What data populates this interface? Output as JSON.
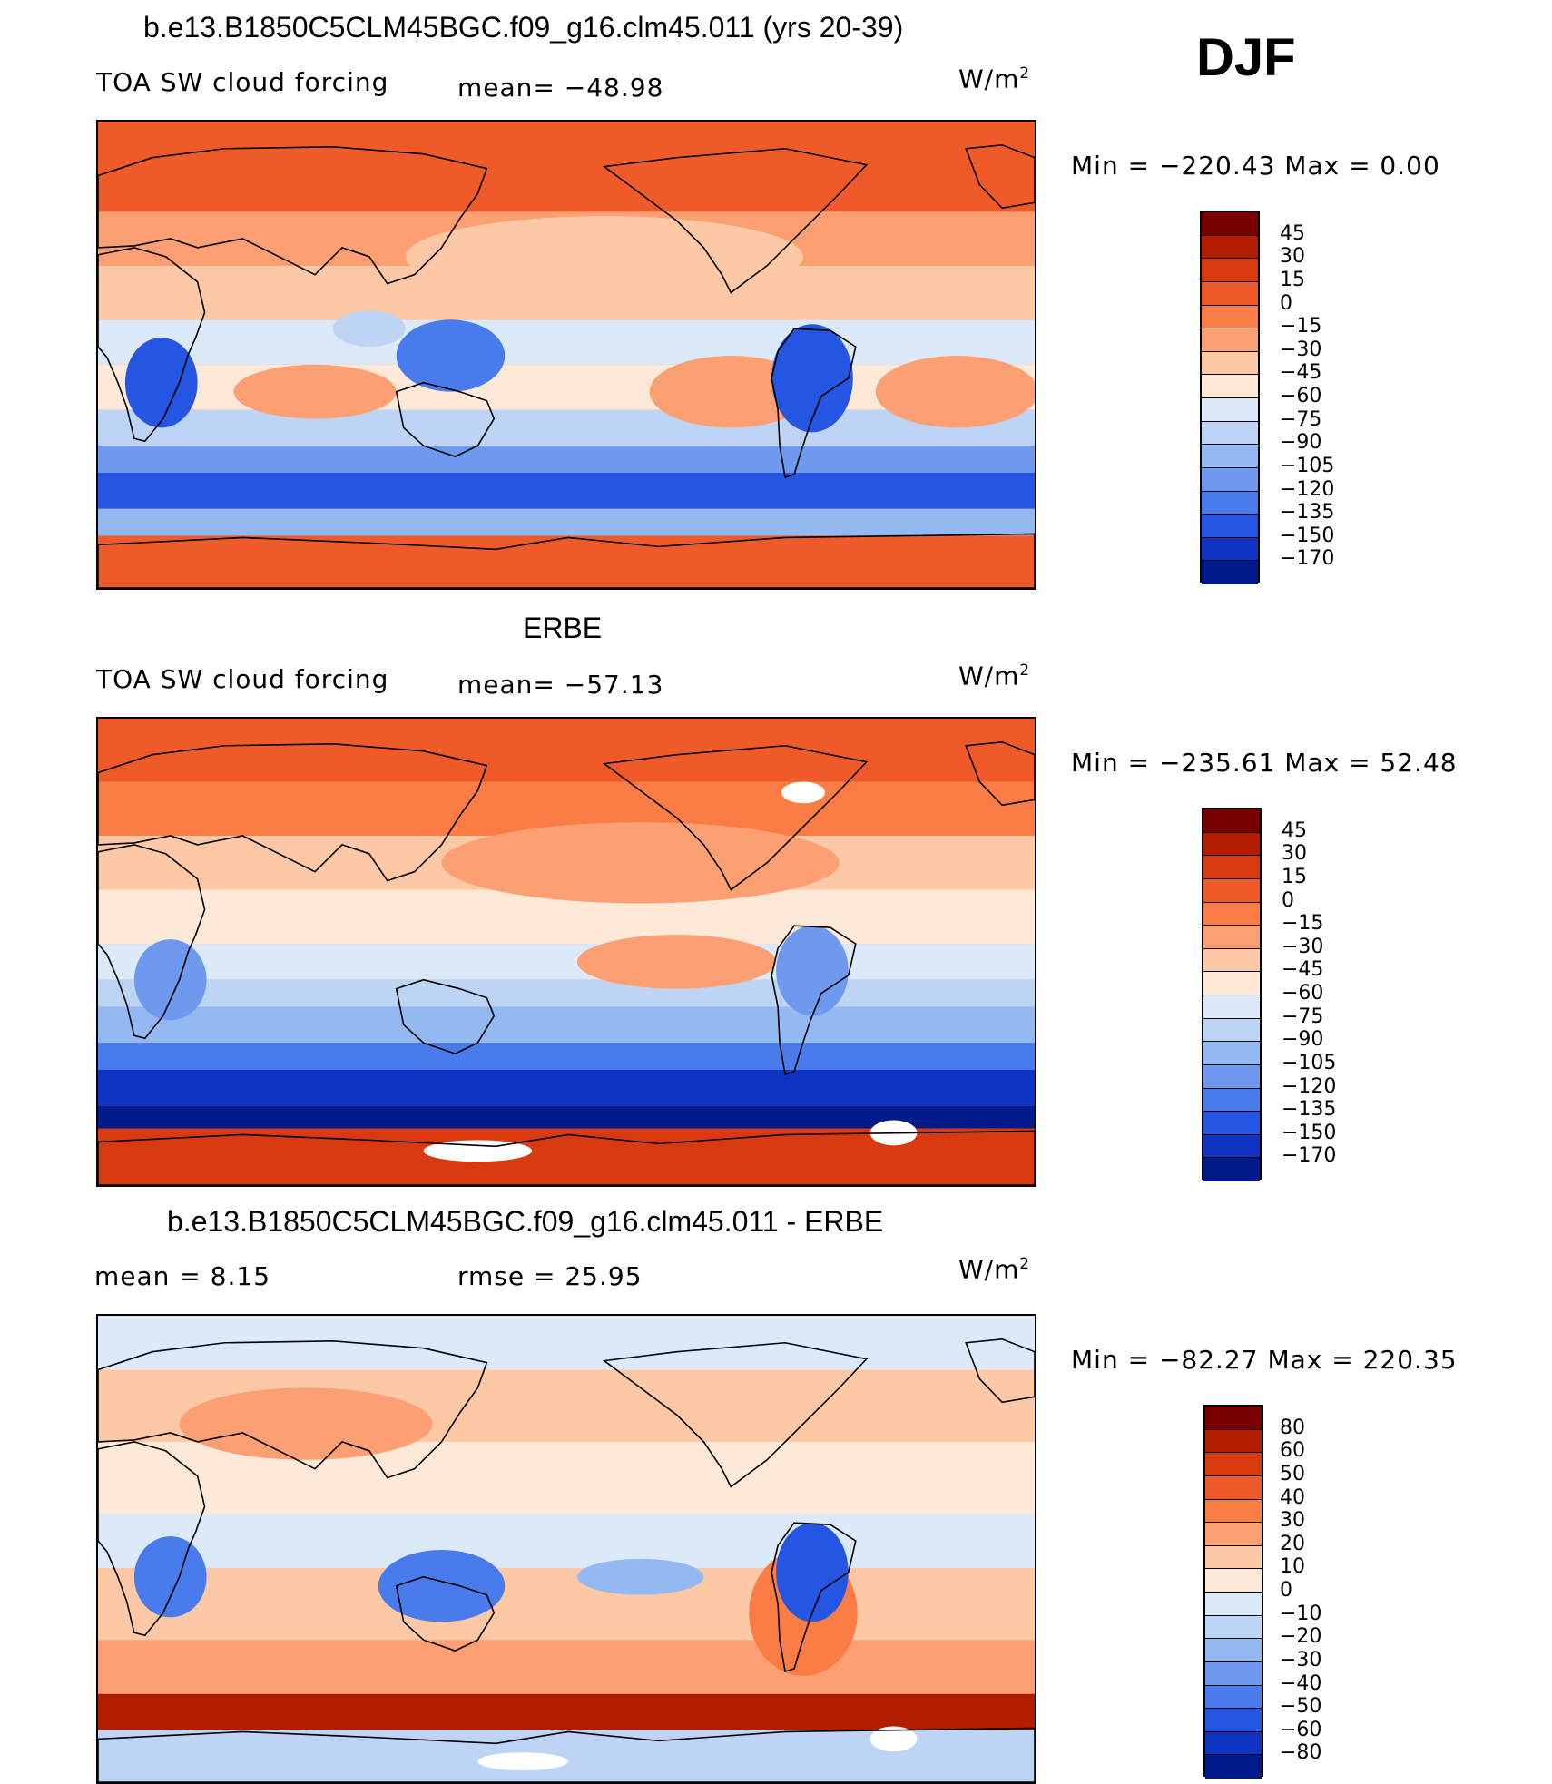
{
  "header": {
    "case_title": "b.e13.B1850C5CLM45BGC.f09_g16.clm45.011 (yrs 20-39)",
    "season": "DJF"
  },
  "panels": [
    {
      "id": "model",
      "variable": "TOA SW cloud forcing",
      "stat_text": "mean=  −48.98",
      "units": "W/m",
      "units_exp": "2",
      "minmax": "Min  =  −220.43  Max  =     0.00",
      "colorbar": {
        "labels": [
          "45",
          "30",
          "15",
          "0",
          "−15",
          "−30",
          "−45",
          "−60",
          "−75",
          "−90",
          "−105",
          "−120",
          "−135",
          "−150",
          "−170"
        ],
        "colors": [
          "#7a0000",
          "#b21d00",
          "#d83a10",
          "#f05a28",
          "#fb7d45",
          "#fc9f72",
          "#fdc8a6",
          "#fee8d7",
          "#dce9f8",
          "#bdd4f5",
          "#94b8f2",
          "#6e99ef",
          "#4a7bec",
          "#2456e3",
          "#0f33c4",
          "#001a8a"
        ]
      },
      "chart_data": {
        "type": "filled-contour-map",
        "projection": "cylindrical-equidistant, centered on 180",
        "variable": "TOA SW cloud forcing",
        "units": "W/m2",
        "mean": -48.98,
        "min": -220.43,
        "max": 0.0,
        "contour_levels": [
          -170,
          -150,
          -135,
          -120,
          -105,
          -90,
          -75,
          -60,
          -45,
          -30,
          -15,
          0,
          15,
          30,
          45
        ]
      }
    },
    {
      "id": "obs",
      "title": "ERBE",
      "variable": "TOA SW cloud forcing",
      "stat_text": "mean=  −57.13",
      "units": "W/m",
      "units_exp": "2",
      "minmax": "Min  =  −235.61  Max  =   52.48",
      "colorbar": {
        "labels": [
          "45",
          "30",
          "15",
          "0",
          "−15",
          "−30",
          "−45",
          "−60",
          "−75",
          "−90",
          "−105",
          "−120",
          "−135",
          "−150",
          "−170"
        ],
        "colors": [
          "#7a0000",
          "#b21d00",
          "#d83a10",
          "#f05a28",
          "#fb7d45",
          "#fc9f72",
          "#fdc8a6",
          "#fee8d7",
          "#dce9f8",
          "#bdd4f5",
          "#94b8f2",
          "#6e99ef",
          "#4a7bec",
          "#2456e3",
          "#0f33c4",
          "#001a8a"
        ]
      },
      "chart_data": {
        "type": "filled-contour-map",
        "projection": "cylindrical-equidistant, centered on 180",
        "variable": "TOA SW cloud forcing",
        "units": "W/m2",
        "mean": -57.13,
        "min": -235.61,
        "max": 52.48,
        "contour_levels": [
          -170,
          -150,
          -135,
          -120,
          -105,
          -90,
          -75,
          -60,
          -45,
          -30,
          -15,
          0,
          15,
          30,
          45
        ]
      }
    },
    {
      "id": "diff",
      "title": "b.e13.B1850C5CLM45BGC.f09_g16.clm45.011 - ERBE",
      "mean_text": "mean  =      8.15",
      "rmse_text": "rmse  =     25.95",
      "units": "W/m",
      "units_exp": "2",
      "minmax": "Min  =  −82.27  Max  =  220.35",
      "colorbar": {
        "labels": [
          "80",
          "60",
          "50",
          "40",
          "30",
          "20",
          "10",
          "0",
          "−10",
          "−20",
          "−30",
          "−40",
          "−50",
          "−60",
          "−80"
        ],
        "colors": [
          "#7a0000",
          "#b21d00",
          "#d83a10",
          "#f05a28",
          "#fb7d45",
          "#fc9f72",
          "#fdc8a6",
          "#fee8d7",
          "#dce9f8",
          "#bdd4f5",
          "#94b8f2",
          "#6e99ef",
          "#4a7bec",
          "#2456e3",
          "#0f33c4",
          "#001a8a"
        ]
      },
      "chart_data": {
        "type": "filled-contour-map",
        "projection": "cylindrical-equidistant, centered on 180",
        "variable": "TOA SW cloud forcing difference",
        "units": "W/m2",
        "mean": 8.15,
        "rmse": 25.95,
        "min": -82.27,
        "max": 220.35,
        "contour_levels": [
          -80,
          -60,
          -50,
          -40,
          -30,
          -20,
          -10,
          0,
          10,
          20,
          30,
          40,
          50,
          60,
          80
        ]
      }
    }
  ]
}
